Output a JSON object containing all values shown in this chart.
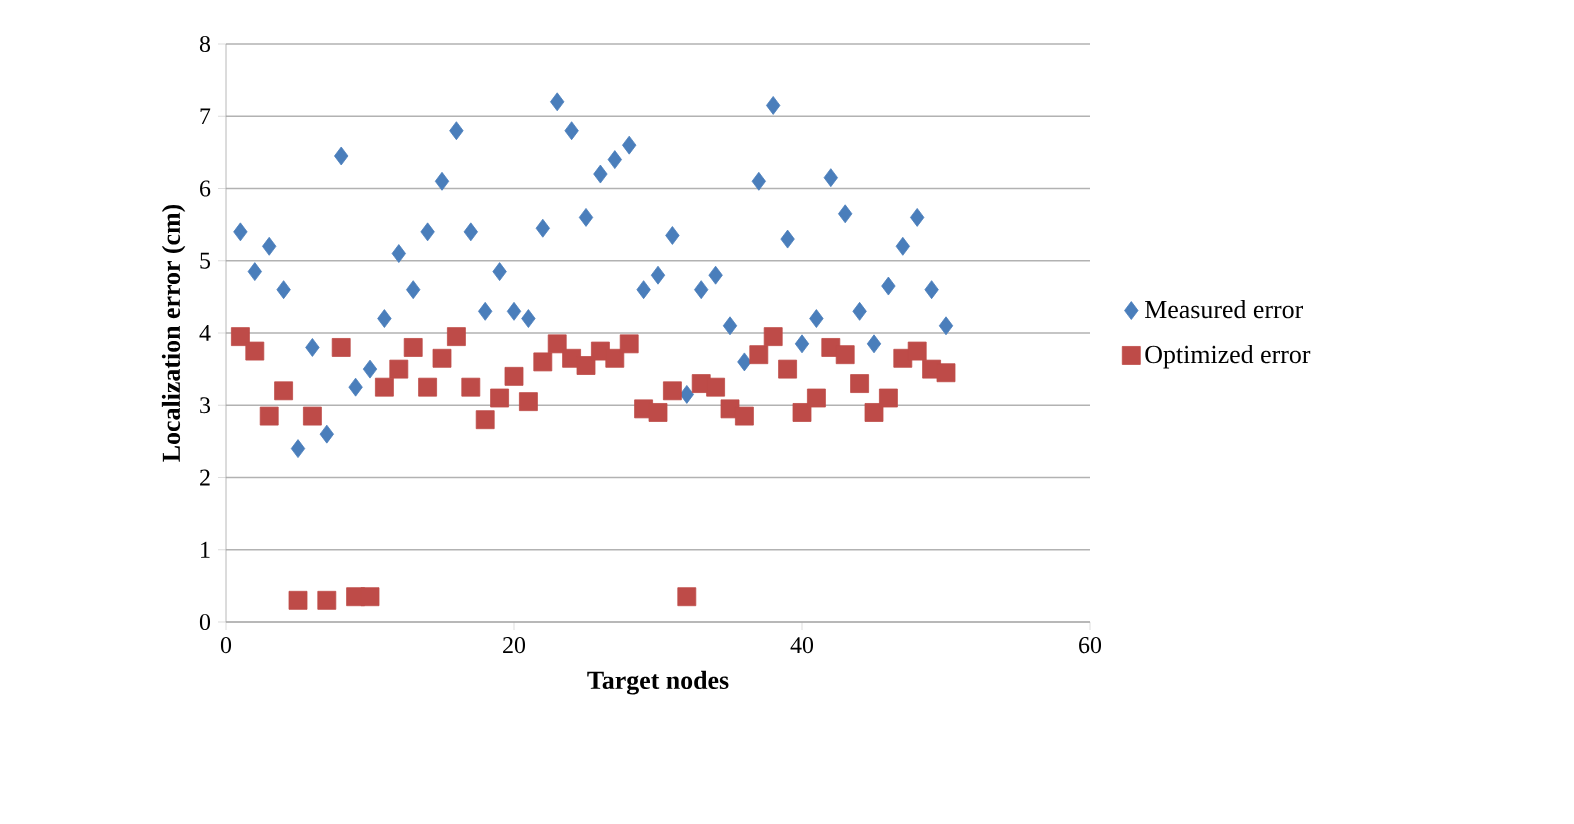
{
  "chart_data": {
    "type": "scatter",
    "xlabel": "Target nodes",
    "ylabel": "Localization error (cm)",
    "xlim": [
      0,
      60
    ],
    "xticks": [
      0,
      20,
      40,
      60
    ],
    "ylim": [
      0,
      8
    ],
    "yticks": [
      0,
      1,
      2,
      3,
      4,
      5,
      6,
      7,
      8
    ],
    "grid": "y",
    "legend": "right",
    "x": [
      1,
      2,
      3,
      4,
      5,
      6,
      7,
      8,
      9,
      10,
      11,
      12,
      13,
      14,
      15,
      16,
      17,
      18,
      19,
      20,
      21,
      22,
      23,
      24,
      25,
      26,
      27,
      28,
      29,
      30,
      31,
      32,
      33,
      34,
      35,
      36,
      37,
      38,
      39,
      40,
      41,
      42,
      43,
      44,
      45,
      46,
      47,
      48,
      49,
      50
    ],
    "series": [
      {
        "name": "Measured error",
        "color": "#4a7ebb",
        "marker": "diamond",
        "values": [
          5.4,
          4.85,
          5.2,
          4.6,
          2.4,
          3.8,
          2.6,
          6.45,
          3.25,
          3.5,
          4.2,
          5.1,
          4.6,
          5.4,
          6.1,
          6.8,
          5.4,
          4.3,
          4.85,
          4.3,
          4.2,
          5.45,
          7.2,
          6.8,
          5.6,
          6.2,
          6.4,
          6.6,
          4.6,
          4.8,
          5.35,
          3.15,
          4.6,
          4.8,
          4.1,
          3.6,
          6.1,
          7.15,
          5.3,
          3.85,
          4.2,
          6.15,
          5.65,
          4.3,
          3.85,
          4.65,
          5.2,
          5.6,
          4.6,
          4.1
        ]
      },
      {
        "name": "Optimized error",
        "color": "#be4b48",
        "marker": "square",
        "values": [
          3.95,
          3.75,
          2.85,
          3.2,
          0.3,
          2.85,
          0.3,
          3.8,
          0.35,
          0.35,
          3.25,
          3.5,
          3.8,
          3.25,
          3.65,
          3.95,
          3.25,
          2.8,
          3.1,
          3.4,
          3.05,
          3.6,
          3.85,
          3.65,
          3.55,
          3.75,
          3.65,
          3.85,
          2.95,
          2.9,
          3.2,
          0.35,
          3.3,
          3.25,
          2.95,
          2.85,
          3.7,
          3.95,
          3.5,
          2.9,
          3.1,
          3.8,
          3.7,
          3.3,
          2.9,
          3.1,
          3.65,
          3.75,
          3.5,
          3.45
        ]
      }
    ]
  }
}
